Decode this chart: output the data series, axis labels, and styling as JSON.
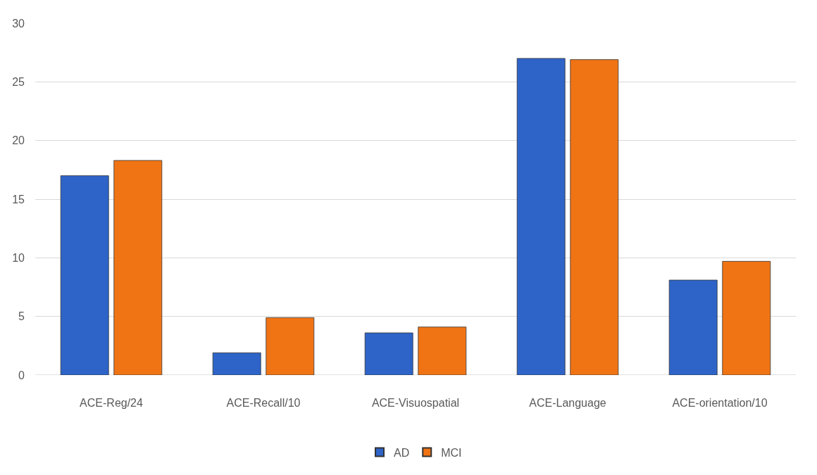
{
  "chart_data": {
    "type": "bar",
    "categories": [
      "ACE-Reg/24",
      "ACE-Recall/10",
      "ACE-Visuospatial",
      "ACE-Language",
      "ACE-orientation/10"
    ],
    "series": [
      {
        "name": "AD",
        "color": "#2e64c8",
        "values": [
          17.0,
          1.9,
          3.6,
          27.0,
          8.1
        ]
      },
      {
        "name": "MCI",
        "color": "#f07414",
        "values": [
          18.3,
          4.9,
          4.1,
          26.9,
          9.7
        ]
      }
    ],
    "ylim": [
      0,
      30
    ],
    "yticks": [
      0,
      5,
      10,
      15,
      20,
      25,
      30
    ],
    "grid": "y",
    "legend": "bottom"
  }
}
